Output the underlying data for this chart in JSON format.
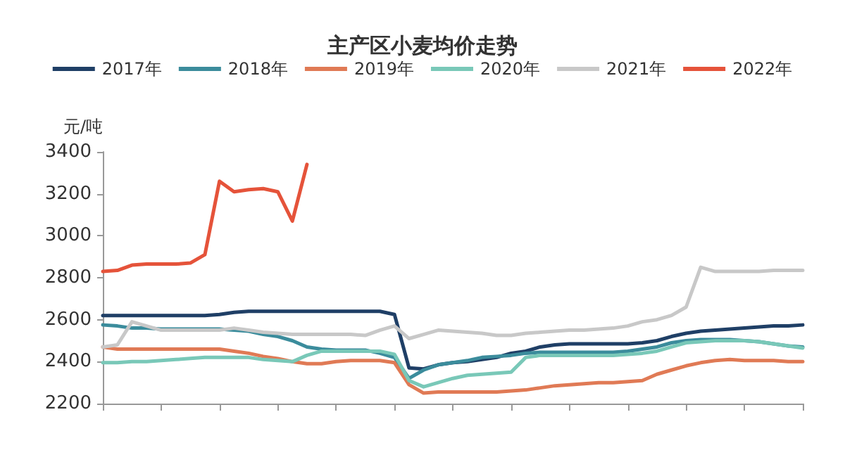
{
  "chart_data": {
    "type": "line",
    "title": "主产区小麦均价走势",
    "ylabel": "元/吨",
    "categories": [
      null,
      null,
      null,
      null,
      null,
      null,
      null,
      null,
      null,
      null,
      null,
      null,
      null,
      null,
      null,
      null,
      null,
      null,
      null,
      null,
      null,
      null,
      null,
      null,
      null,
      null,
      null,
      null,
      null,
      null,
      null,
      null,
      null,
      null,
      null,
      null,
      null,
      null,
      null,
      null,
      null,
      null,
      null,
      null,
      null,
      null,
      null,
      null,
      null
    ],
    "series": [
      {
        "name": "2017年",
        "color": "#1f3f66",
        "values": [
          2620,
          2620,
          2620,
          2620,
          2620,
          2620,
          2620,
          2620,
          2625,
          2635,
          2640,
          2640,
          2640,
          2640,
          2640,
          2640,
          2640,
          2640,
          2640,
          2640,
          2625,
          2370,
          2365,
          2385,
          2395,
          2400,
          2410,
          2420,
          2440,
          2450,
          2470,
          2480,
          2485,
          2485,
          2485,
          2485,
          2485,
          2490,
          2500,
          2520,
          2535,
          2545,
          2550,
          2555,
          2560,
          2565,
          2570,
          2570,
          2575
        ]
      },
      {
        "name": "2018年",
        "color": "#3b8c9c",
        "values": [
          2575,
          2570,
          2560,
          2560,
          2555,
          2555,
          2555,
          2555,
          2555,
          2550,
          2545,
          2530,
          2520,
          2500,
          2470,
          2460,
          2455,
          2455,
          2455,
          2440,
          2420,
          2320,
          2360,
          2385,
          2395,
          2405,
          2420,
          2425,
          2430,
          2440,
          2445,
          2445,
          2445,
          2445,
          2445,
          2445,
          2450,
          2460,
          2470,
          2490,
          2500,
          2505,
          2505,
          2505,
          2500,
          2495,
          2485,
          2475,
          2470
        ]
      },
      {
        "name": "2019年",
        "color": "#e07a55",
        "values": [
          2470,
          2460,
          2460,
          2460,
          2460,
          2460,
          2460,
          2460,
          2460,
          2450,
          2440,
          2425,
          2415,
          2400,
          2390,
          2390,
          2400,
          2405,
          2405,
          2405,
          2395,
          2290,
          2250,
          2255,
          2255,
          2255,
          2255,
          2255,
          2260,
          2265,
          2275,
          2285,
          2290,
          2295,
          2300,
          2300,
          2305,
          2310,
          2340,
          2360,
          2380,
          2395,
          2405,
          2410,
          2405,
          2405,
          2405,
          2400,
          2400
        ]
      },
      {
        "name": "2020年",
        "color": "#79c8b8",
        "values": [
          2395,
          2395,
          2400,
          2400,
          2405,
          2410,
          2415,
          2420,
          2420,
          2420,
          2420,
          2410,
          2405,
          2400,
          2430,
          2450,
          2450,
          2450,
          2450,
          2450,
          2435,
          2310,
          2280,
          2300,
          2320,
          2335,
          2340,
          2345,
          2350,
          2420,
          2430,
          2430,
          2430,
          2430,
          2430,
          2430,
          2435,
          2440,
          2450,
          2470,
          2490,
          2495,
          2500,
          2500,
          2500,
          2495,
          2485,
          2475,
          2465
        ]
      },
      {
        "name": "2021年",
        "color": "#c8c8c8",
        "values": [
          2470,
          2480,
          2590,
          2570,
          2550,
          2550,
          2550,
          2550,
          2550,
          2560,
          2550,
          2540,
          2535,
          2530,
          2530,
          2530,
          2530,
          2530,
          2525,
          2550,
          2570,
          2510,
          2530,
          2550,
          2545,
          2540,
          2535,
          2525,
          2525,
          2535,
          2540,
          2545,
          2550,
          2550,
          2555,
          2560,
          2570,
          2590,
          2600,
          2620,
          2660,
          2850,
          2830,
          2830,
          2830,
          2830,
          2835,
          2835,
          2835
        ]
      },
      {
        "name": "2022年",
        "color": "#e5533a",
        "values": [
          2830,
          2835,
          2860,
          2865,
          2865,
          2865,
          2870,
          2910,
          3260,
          3210,
          3220,
          3225,
          3210,
          3070,
          3340,
          null,
          null,
          null,
          null,
          null,
          null,
          null,
          null,
          null,
          null,
          null,
          null,
          null,
          null,
          null,
          null,
          null,
          null,
          null,
          null,
          null,
          null,
          null,
          null,
          null,
          null,
          null,
          null,
          null,
          null,
          null,
          null,
          null,
          null
        ]
      }
    ],
    "ylim": [
      2200,
      3400
    ],
    "yticks": [
      2200,
      2400,
      2600,
      2800,
      3000,
      3200,
      3400
    ],
    "grid": false,
    "legend": "top",
    "tick_labels": "y",
    "marker": "none",
    "line_style": "solid"
  }
}
